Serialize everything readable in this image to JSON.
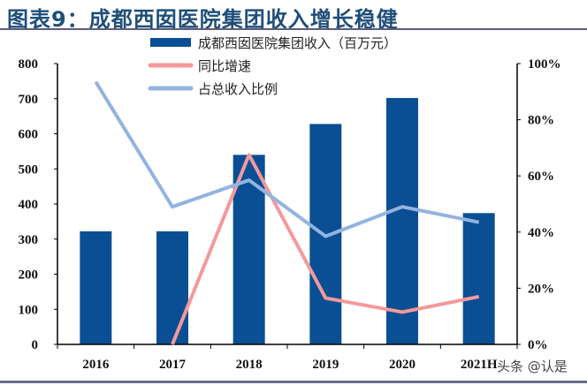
{
  "title": "图表9：成都西囡医院集团收入增长稳健",
  "watermark": "头条 @认是",
  "chart_data": {
    "type": "bar+line",
    "categories": [
      "2016",
      "2017",
      "2018",
      "2019",
      "2020",
      "2021H"
    ],
    "series": [
      {
        "name": "成都西囡医院集团收入（百万元）",
        "type": "bar",
        "axis": "left",
        "color": "#0a4f94",
        "values": [
          322,
          322,
          540,
          628,
          702,
          374
        ]
      },
      {
        "name": "同比增速",
        "type": "line",
        "axis": "right",
        "color": "#f4999b",
        "values": [
          null,
          0,
          67.5,
          16.5,
          11.5,
          17
        ]
      },
      {
        "name": "占总收入比例",
        "type": "line",
        "axis": "right",
        "color": "#93b4e0",
        "values": [
          93.5,
          49,
          58.5,
          38.5,
          49,
          43.5
        ]
      }
    ],
    "left_axis": {
      "ylim": [
        0,
        800
      ],
      "ticks": [
        "0",
        "100",
        "200",
        "300",
        "400",
        "500",
        "600",
        "700",
        "800"
      ]
    },
    "right_axis": {
      "ylim": [
        0,
        100
      ],
      "ticks": [
        "0%",
        "20%",
        "40%",
        "60%",
        "80%",
        "100%"
      ]
    },
    "grid": false,
    "legend": "top-center"
  }
}
